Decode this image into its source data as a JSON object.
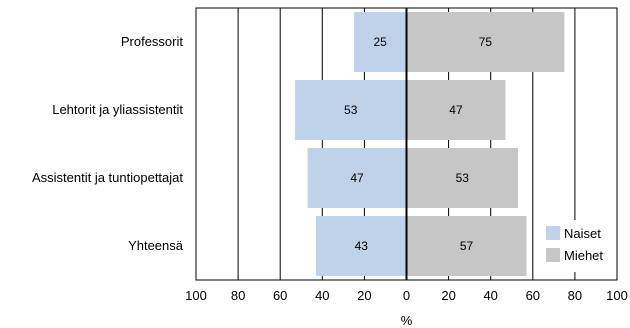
{
  "chart_data": {
    "type": "bar",
    "orientation": "horizontal-diverging",
    "categories": [
      "Professorit",
      "Lehtorit ja yliassistentit",
      "Assistentit ja tuntiopettajat",
      "Yhteensä"
    ],
    "series": [
      {
        "name": "Naiset",
        "values": [
          25,
          53,
          47,
          43
        ],
        "color": "#bed3ea",
        "side": "left"
      },
      {
        "name": "Miehet",
        "values": [
          75,
          47,
          53,
          57
        ],
        "color": "#c6c6c6",
        "side": "right"
      }
    ],
    "xlabel": "%",
    "ylabel": "",
    "xlim": [
      -100,
      100
    ],
    "x_ticks": [
      -100,
      -80,
      -60,
      -40,
      -20,
      0,
      20,
      40,
      60,
      80,
      100
    ],
    "x_tick_labels": [
      "100",
      "80",
      "60",
      "40",
      "20",
      "0",
      "20",
      "40",
      "60",
      "80",
      "100"
    ],
    "grid": "vertical",
    "legend_position": "bottom-right",
    "colors": {
      "grid": "#000000",
      "zero_line": "#000000"
    }
  }
}
